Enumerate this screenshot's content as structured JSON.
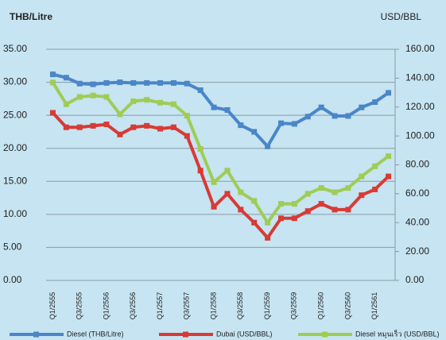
{
  "chart_data": {
    "type": "line",
    "y_label": "THB/Litre",
    "y2_label": "USD/BBL",
    "categories": [
      "Q1/2555",
      null,
      "Q3/2555",
      null,
      "Q1/2556",
      null,
      "Q3/2556",
      null,
      "Q1/2557",
      null,
      "Q3/2557",
      null,
      "Q1/2558",
      null,
      "Q3/2558",
      null,
      "Q1/2559",
      null,
      "Q3/2559",
      null,
      "Q1/2560",
      null,
      "Q3/2560",
      null,
      "Q1/2561",
      null
    ],
    "series": [
      {
        "name": "Diesel (THB/Litre)",
        "color": "#4a86c8",
        "axis": "y",
        "values": [
          31.2,
          30.7,
          29.8,
          29.7,
          29.9,
          30.0,
          29.9,
          29.9,
          29.9,
          29.9,
          29.8,
          28.8,
          26.2,
          25.8,
          23.5,
          22.5,
          20.3,
          23.8,
          23.7,
          24.8,
          26.2,
          24.9,
          24.9,
          26.2,
          27.0,
          28.4
        ]
      },
      {
        "name": "Dubai (USD/BBL)",
        "color": "#d83a35",
        "axis": "y2",
        "values": [
          116,
          106,
          106,
          107,
          108,
          101,
          106,
          107,
          105,
          106,
          100,
          76,
          51,
          60,
          49,
          40,
          29.5,
          43,
          43,
          48,
          53,
          49,
          49,
          59,
          63,
          72
        ]
      },
      {
        "name": "Diesel หมุนเร็ว (USD/BBL)",
        "color": "#9fcc55",
        "axis": "y2",
        "values": [
          137,
          122,
          127,
          128,
          127,
          115,
          124,
          125,
          123,
          122,
          114,
          91,
          68,
          76,
          61,
          55,
          40,
          53,
          53,
          60,
          64,
          61,
          64,
          72,
          79,
          86
        ]
      }
    ],
    "ylim": [
      0,
      35
    ],
    "yticks": [
      {
        "value": 0,
        "label": "0.00"
      },
      {
        "value": 5,
        "label": "5.00"
      },
      {
        "value": 10,
        "label": "10.00"
      },
      {
        "value": 15,
        "label": "15.00"
      },
      {
        "value": 20,
        "label": "20.00"
      },
      {
        "value": 25,
        "label": "25.00"
      },
      {
        "value": 30,
        "label": "30.00"
      },
      {
        "value": 35,
        "label": "35.00"
      }
    ],
    "y2lim": [
      0,
      160
    ],
    "y2ticks": [
      {
        "value": 0,
        "label": "0.00"
      },
      {
        "value": 20,
        "label": "20.00"
      },
      {
        "value": 40,
        "label": "40.00"
      },
      {
        "value": 60,
        "label": "60.00"
      },
      {
        "value": 80,
        "label": "80.00"
      },
      {
        "value": 100,
        "label": "100.00"
      },
      {
        "value": 120,
        "label": "120.00"
      },
      {
        "value": 140,
        "label": "140.00"
      },
      {
        "value": 160,
        "label": "160.00"
      }
    ],
    "grid": true,
    "legend": "bottom"
  }
}
